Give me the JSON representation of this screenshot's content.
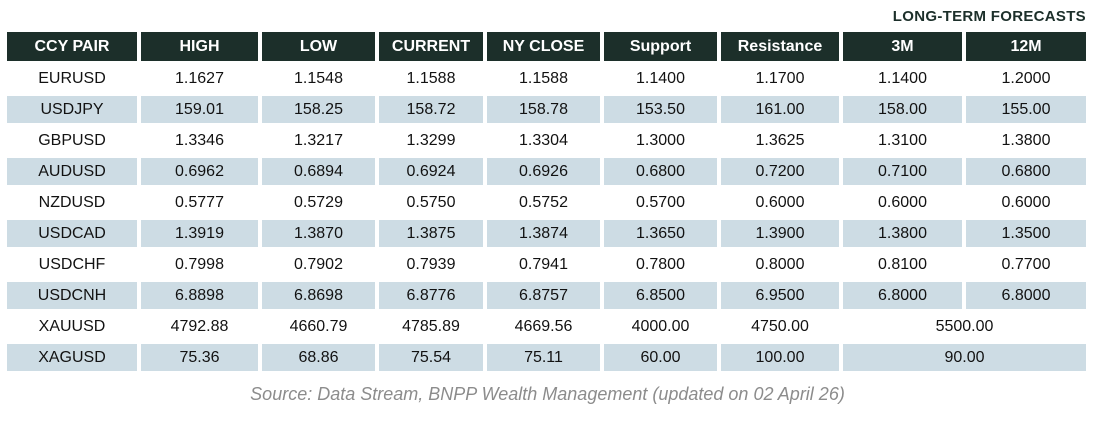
{
  "forecast_label": "LONG-TERM FORECASTS",
  "source_note": "Source: Data Stream, BNPP Wealth Management (updated on 02 April 26)",
  "colors": {
    "header_bg": "#1c2f2a",
    "header_text": "#ffffff",
    "row_alt_bg": "#cddce4",
    "body_text": "#121212",
    "source_text": "#8c8c8c",
    "page_bg": "#ffffff"
  },
  "table": {
    "columns": [
      "CCY PAIR",
      "HIGH",
      "LOW",
      "CURRENT",
      "NY CLOSE",
      "Support",
      "Resistance",
      "3M",
      "12M"
    ],
    "rows": [
      {
        "pair": "EURUSD",
        "high": "1.1627",
        "low": "1.1548",
        "current": "1.1588",
        "ny_close": "1.1588",
        "support": "1.1400",
        "resistance": "1.1700",
        "m3": "1.1400",
        "m12": "1.2000"
      },
      {
        "pair": "USDJPY",
        "high": "159.01",
        "low": "158.25",
        "current": "158.72",
        "ny_close": "158.78",
        "support": "153.50",
        "resistance": "161.00",
        "m3": "158.00",
        "m12": "155.00"
      },
      {
        "pair": "GBPUSD",
        "high": "1.3346",
        "low": "1.3217",
        "current": "1.3299",
        "ny_close": "1.3304",
        "support": "1.3000",
        "resistance": "1.3625",
        "m3": "1.3100",
        "m12": "1.3800"
      },
      {
        "pair": "AUDUSD",
        "high": "0.6962",
        "low": "0.6894",
        "current": "0.6924",
        "ny_close": "0.6926",
        "support": "0.6800",
        "resistance": "0.7200",
        "m3": "0.7100",
        "m12": "0.6800"
      },
      {
        "pair": "NZDUSD",
        "high": "0.5777",
        "low": "0.5729",
        "current": "0.5750",
        "ny_close": "0.5752",
        "support": "0.5700",
        "resistance": "0.6000",
        "m3": "0.6000",
        "m12": "0.6000"
      },
      {
        "pair": "USDCAD",
        "high": "1.3919",
        "low": "1.3870",
        "current": "1.3875",
        "ny_close": "1.3874",
        "support": "1.3650",
        "resistance": "1.3900",
        "m3": "1.3800",
        "m12": "1.3500"
      },
      {
        "pair": "USDCHF",
        "high": "0.7998",
        "low": "0.7902",
        "current": "0.7939",
        "ny_close": "0.7941",
        "support": "0.7800",
        "resistance": "0.8000",
        "m3": "0.8100",
        "m12": "0.7700"
      },
      {
        "pair": "USDCNH",
        "high": "6.8898",
        "low": "6.8698",
        "current": "6.8776",
        "ny_close": "6.8757",
        "support": "6.8500",
        "resistance": "6.9500",
        "m3": "6.8000",
        "m12": "6.8000"
      },
      {
        "pair": "XAUUSD",
        "high": "4792.88",
        "low": "4660.79",
        "current": "4785.89",
        "ny_close": "4669.56",
        "support": "4000.00",
        "resistance": "4750.00",
        "forecast_merged": "5500.00"
      },
      {
        "pair": "XAGUSD",
        "high": "75.36",
        "low": "68.86",
        "current": "75.54",
        "ny_close": "75.11",
        "support": "60.00",
        "resistance": "100.00",
        "forecast_merged": "90.00"
      }
    ]
  },
  "chart_data": {
    "type": "table",
    "title": "LONG-TERM FORECASTS",
    "columns": [
      "CCY PAIR",
      "HIGH",
      "LOW",
      "CURRENT",
      "NY CLOSE",
      "Support",
      "Resistance",
      "3M",
      "12M"
    ],
    "rows": [
      [
        "EURUSD",
        1.1627,
        1.1548,
        1.1588,
        1.1588,
        1.14,
        1.17,
        1.14,
        1.2
      ],
      [
        "USDJPY",
        159.01,
        158.25,
        158.72,
        158.78,
        153.5,
        161.0,
        158.0,
        155.0
      ],
      [
        "GBPUSD",
        1.3346,
        1.3217,
        1.3299,
        1.3304,
        1.3,
        1.3625,
        1.31,
        1.38
      ],
      [
        "AUDUSD",
        0.6962,
        0.6894,
        0.6924,
        0.6926,
        0.68,
        0.72,
        0.71,
        0.68
      ],
      [
        "NZDUSD",
        0.5777,
        0.5729,
        0.575,
        0.5752,
        0.57,
        0.6,
        0.6,
        0.6
      ],
      [
        "USDCAD",
        1.3919,
        1.387,
        1.3875,
        1.3874,
        1.365,
        1.39,
        1.38,
        1.35
      ],
      [
        "USDCHF",
        0.7998,
        0.7902,
        0.7939,
        0.7941,
        0.78,
        0.8,
        0.81,
        0.77
      ],
      [
        "USDCNH",
        6.8898,
        6.8698,
        6.8776,
        6.8757,
        6.85,
        6.95,
        6.8,
        6.8
      ],
      [
        "XAUUSD",
        4792.88,
        4660.79,
        4785.89,
        4669.56,
        4000.0,
        4750.0,
        5500.0,
        5500.0
      ],
      [
        "XAGUSD",
        75.36,
        68.86,
        75.54,
        75.11,
        60.0,
        100.0,
        90.0,
        90.0
      ]
    ],
    "note": "Source: Data Stream, BNPP Wealth Management (updated on 02 April 26)",
    "layout_hints": "3M and 12M forecast cells are merged (colspan 2) for XAUUSD and XAGUSD rows; rows alternate white / light-blue shading"
  }
}
